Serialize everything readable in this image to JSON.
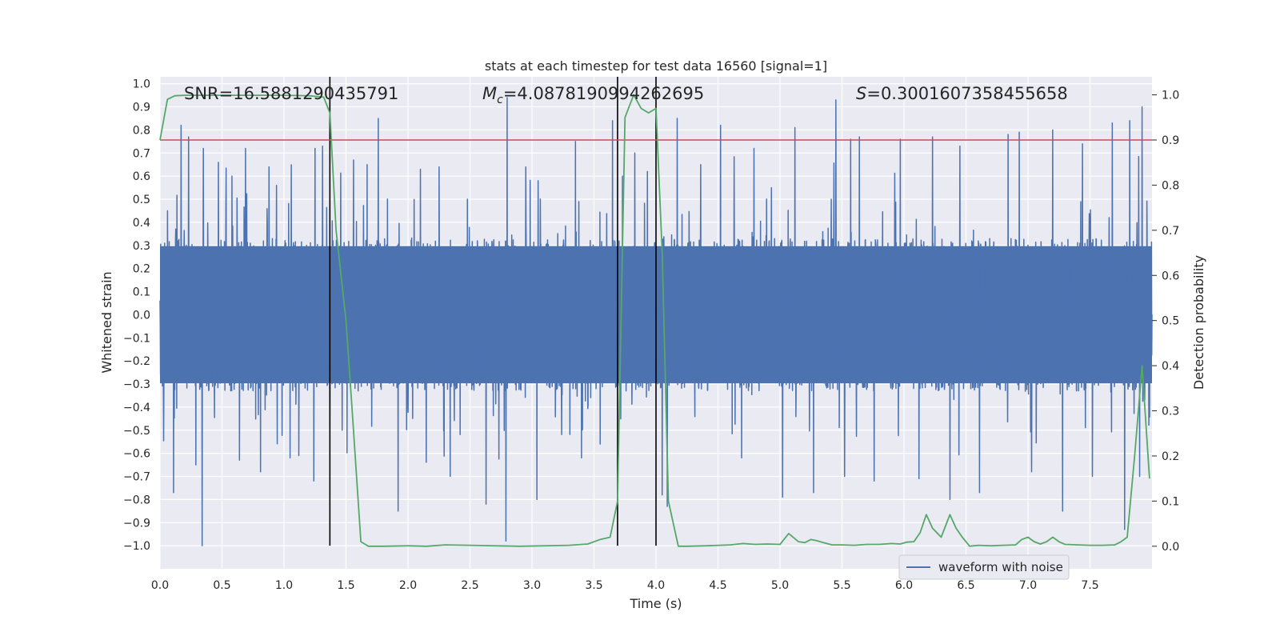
{
  "chart_data": {
    "type": "line",
    "title": "stats at each timestep for test data 16560 [signal=1]",
    "xlabel": "Time (s)",
    "ylabel_left": "Whitened strain",
    "ylabel_right": "Detection probability",
    "xlim": [
      0.0,
      8.0
    ],
    "ylim_left": [
      -1.1,
      1.03
    ],
    "ylim_right": [
      -0.05,
      1.04
    ],
    "x_ticks": [
      0.0,
      0.5,
      1.0,
      1.5,
      2.0,
      2.5,
      3.0,
      3.5,
      4.0,
      4.5,
      5.0,
      5.5,
      6.0,
      6.5,
      7.0,
      7.5
    ],
    "x_tick_labels": [
      "0.0",
      "0.5",
      "1.0",
      "1.5",
      "2.0",
      "2.5",
      "3.0",
      "3.5",
      "4.0",
      "4.5",
      "5.0",
      "5.5",
      "6.0",
      "6.5",
      "7.0",
      "7.5"
    ],
    "y_left_ticks": [
      1.0,
      0.9,
      0.8,
      0.7,
      0.6,
      0.5,
      0.4,
      0.3,
      0.2,
      0.1,
      0.0,
      -0.1,
      -0.2,
      -0.3,
      -0.4,
      -0.5,
      -0.6,
      -0.7,
      -0.8,
      -0.9,
      -1.0
    ],
    "y_left_tick_labels": [
      "1.0",
      "0.9",
      "0.8",
      "0.7",
      "0.6",
      "0.5",
      "0.4",
      "0.3",
      "0.2",
      "0.1",
      "0.0",
      "−0.1",
      "−0.2",
      "−0.3",
      "−0.4",
      "−0.5",
      "−0.6",
      "−0.7",
      "−0.8",
      "−0.9",
      "−1.0"
    ],
    "y_right_ticks": [
      1.0,
      0.9,
      0.8,
      0.7,
      0.6,
      0.5,
      0.4,
      0.3,
      0.2,
      0.1,
      0.0
    ],
    "y_right_tick_labels": [
      "1.0",
      "0.9",
      "0.8",
      "0.7",
      "0.6",
      "0.5",
      "0.4",
      "0.3",
      "0.2",
      "0.1",
      "0.0"
    ],
    "annotations": {
      "snr": "SNR=16.5881290435791",
      "mc_symbol": "M",
      "mc_sub": "c",
      "mc_value": "=4.0878190994262695",
      "s_symbol": "S",
      "s_value": "=0.3001607358455658"
    },
    "legend": {
      "label": "waveform with noise",
      "location": "lower-right"
    },
    "threshold": {
      "axis": "right",
      "y": 0.9,
      "color": "#c44e52"
    },
    "vertical_markers": [
      1.37,
      3.69,
      4.0
    ],
    "waveform": {
      "name": "waveform with noise",
      "color": "#4c72b0",
      "t_start": 0.0,
      "t_end": 8.0,
      "samples": 4096,
      "core_amplitude": 0.33,
      "spikes": [
        [
          0.06,
          0.45
        ],
        [
          0.11,
          -0.77
        ],
        [
          0.17,
          0.82
        ],
        [
          0.23,
          0.77
        ],
        [
          0.29,
          -0.65
        ],
        [
          0.34,
          -1.0
        ],
        [
          0.35,
          0.72
        ],
        [
          0.47,
          0.66
        ],
        [
          0.58,
          0.6
        ],
        [
          0.64,
          -0.63
        ],
        [
          0.69,
          0.72
        ],
        [
          0.81,
          -0.68
        ],
        [
          0.88,
          0.64
        ],
        [
          0.94,
          0.56
        ],
        [
          1.05,
          -0.62
        ],
        [
          1.12,
          -0.61
        ],
        [
          1.24,
          -0.72
        ],
        [
          1.25,
          0.72
        ],
        [
          1.31,
          0.73
        ],
        [
          1.47,
          -0.5
        ],
        [
          1.56,
          0.67
        ],
        [
          1.67,
          0.65
        ],
        [
          1.76,
          0.85
        ],
        [
          1.92,
          -0.85
        ],
        [
          2.1,
          0.63
        ],
        [
          2.25,
          0.64
        ],
        [
          2.34,
          -0.7
        ],
        [
          2.48,
          0.5
        ],
        [
          2.63,
          -0.82
        ],
        [
          2.79,
          -0.98
        ],
        [
          2.8,
          0.94
        ],
        [
          2.95,
          0.64
        ],
        [
          3.05,
          0.58
        ],
        [
          3.04,
          -0.8
        ],
        [
          3.35,
          0.75
        ],
        [
          3.4,
          -0.62
        ],
        [
          3.55,
          -0.56
        ],
        [
          3.65,
          0.84
        ],
        [
          3.73,
          0.6
        ],
        [
          3.83,
          0.7
        ],
        [
          3.93,
          0.62
        ],
        [
          4.05,
          -0.78
        ],
        [
          4.09,
          -0.83
        ],
        [
          4.17,
          0.85
        ],
        [
          4.36,
          0.65
        ],
        [
          4.52,
          0.82
        ],
        [
          4.69,
          -0.62
        ],
        [
          4.79,
          0.72
        ],
        [
          4.93,
          0.55
        ],
        [
          5.02,
          -0.79
        ],
        [
          5.12,
          0.81
        ],
        [
          5.27,
          -0.77
        ],
        [
          5.45,
          0.93
        ],
        [
          5.52,
          -0.7
        ],
        [
          5.57,
          0.76
        ],
        [
          5.64,
          0.77
        ],
        [
          5.76,
          -0.72
        ],
        [
          5.97,
          0.76
        ],
        [
          6.12,
          -0.71
        ],
        [
          6.23,
          0.77
        ],
        [
          6.37,
          -0.8
        ],
        [
          6.45,
          0.73
        ],
        [
          6.61,
          -0.77
        ],
        [
          6.84,
          0.78
        ],
        [
          6.93,
          0.79
        ],
        [
          7.03,
          -0.68
        ],
        [
          7.2,
          0.8
        ],
        [
          7.28,
          -0.85
        ],
        [
          7.44,
          0.74
        ],
        [
          7.52,
          -0.7
        ],
        [
          7.68,
          0.83
        ],
        [
          7.78,
          -0.93
        ],
        [
          7.82,
          0.84
        ],
        [
          7.92,
          0.9
        ],
        [
          7.9,
          -0.7
        ]
      ]
    },
    "detection_probability": {
      "name": "detection probability",
      "color": "#55a868",
      "axis": "right",
      "t": [
        0.0,
        0.06,
        0.12,
        0.2,
        0.4,
        0.6,
        0.8,
        1.0,
        1.2,
        1.32,
        1.37,
        1.42,
        1.5,
        1.55,
        1.62,
        1.68,
        1.8,
        2.0,
        2.15,
        2.3,
        2.5,
        2.7,
        2.9,
        3.1,
        3.3,
        3.45,
        3.55,
        3.63,
        3.69,
        3.75,
        3.82,
        3.88,
        3.94,
        4.0,
        4.05,
        4.1,
        4.18,
        4.25,
        4.4,
        4.6,
        4.7,
        4.8,
        4.9,
        5.0,
        5.07,
        5.15,
        5.2,
        5.25,
        5.3,
        5.35,
        5.42,
        5.5,
        5.6,
        5.7,
        5.8,
        5.9,
        5.97,
        6.02,
        6.08,
        6.13,
        6.18,
        6.23,
        6.3,
        6.37,
        6.42,
        6.47,
        6.53,
        6.6,
        6.7,
        6.8,
        6.9,
        6.95,
        7.0,
        7.05,
        7.1,
        7.15,
        7.2,
        7.25,
        7.3,
        7.4,
        7.5,
        7.6,
        7.7,
        7.75,
        7.8,
        7.86,
        7.92,
        7.98
      ],
      "p": [
        0.9,
        0.99,
        0.998,
        0.999,
        0.999,
        0.999,
        0.999,
        0.999,
        0.998,
        0.995,
        0.96,
        0.7,
        0.5,
        0.3,
        0.01,
        0.0,
        0.0,
        0.001,
        0.0,
        0.003,
        0.002,
        0.001,
        0.0,
        0.001,
        0.002,
        0.005,
        0.015,
        0.02,
        0.1,
        0.95,
        1.0,
        0.97,
        0.96,
        0.97,
        0.65,
        0.1,
        0.0,
        0.0,
        0.001,
        0.003,
        0.006,
        0.004,
        0.005,
        0.004,
        0.028,
        0.01,
        0.008,
        0.015,
        0.012,
        0.008,
        0.003,
        0.003,
        0.002,
        0.004,
        0.004,
        0.006,
        0.005,
        0.009,
        0.01,
        0.03,
        0.07,
        0.04,
        0.02,
        0.07,
        0.04,
        0.02,
        0.0,
        0.002,
        0.001,
        0.002,
        0.003,
        0.015,
        0.02,
        0.01,
        0.005,
        0.01,
        0.02,
        0.01,
        0.004,
        0.003,
        0.002,
        0.002,
        0.003,
        0.01,
        0.02,
        0.2,
        0.4,
        0.15
      ]
    }
  }
}
